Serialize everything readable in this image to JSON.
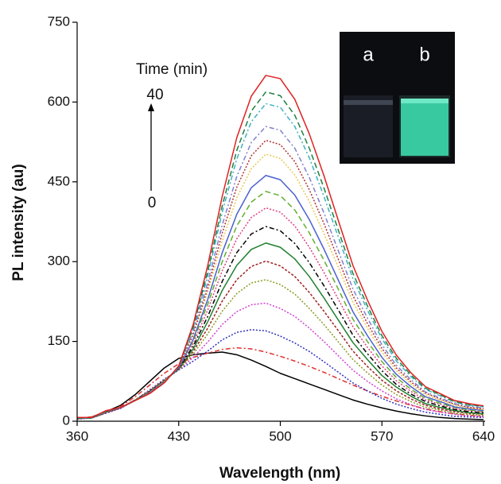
{
  "chart_data": {
    "type": "line",
    "xlabel": "Wavelength (nm)",
    "ylabel": "PL intensity (au)",
    "xlim": [
      360,
      640
    ],
    "ylim": [
      0,
      750
    ],
    "xticks": [
      360,
      430,
      500,
      570,
      640
    ],
    "yticks": [
      0,
      150,
      300,
      450,
      600,
      750
    ],
    "annotations": {
      "time_label": "Time (min)",
      "end": "40",
      "start": "0"
    },
    "inset": {
      "labels": [
        "a",
        "b"
      ]
    },
    "x": [
      360,
      370,
      380,
      390,
      400,
      410,
      420,
      430,
      440,
      450,
      460,
      470,
      480,
      490,
      500,
      510,
      520,
      530,
      540,
      550,
      560,
      570,
      580,
      590,
      600,
      610,
      620,
      630,
      640
    ],
    "series": [
      {
        "color": "#000000",
        "dash": "none",
        "values": [
          5,
          8,
          18,
          30,
          50,
          75,
          100,
          118,
          125,
          128,
          130,
          125,
          115,
          103,
          90,
          80,
          70,
          60,
          50,
          40,
          32,
          25,
          19,
          14,
          10,
          7,
          5,
          4,
          3
        ]
      },
      {
        "color": "#e03030",
        "dash": "6,3,2,3",
        "values": [
          5,
          8,
          17,
          28,
          46,
          68,
          90,
          108,
          120,
          128,
          135,
          138,
          136,
          130,
          122,
          113,
          103,
          92,
          80,
          68,
          57,
          47,
          38,
          30,
          23,
          18,
          14,
          11,
          9
        ]
      },
      {
        "color": "#3030c0",
        "dash": "2,2",
        "values": [
          4,
          6,
          15,
          24,
          40,
          59,
          79,
          96,
          113,
          132,
          153,
          167,
          172,
          170,
          160,
          147,
          131,
          112,
          92,
          72,
          57,
          43,
          32,
          24,
          17,
          13,
          9,
          8,
          7
        ]
      },
      {
        "color": "#d040d0",
        "dash": "2,2",
        "values": [
          5,
          6,
          16,
          24,
          40,
          58,
          78,
          96,
          120,
          149,
          182,
          206,
          219,
          222,
          212,
          197,
          175,
          150,
          123,
          96,
          75,
          57,
          42,
          31,
          22,
          17,
          13,
          10,
          9
        ]
      },
      {
        "color": "#8a9a20",
        "dash": "2,2",
        "values": [
          5,
          6,
          16,
          25,
          40,
          57,
          77,
          97,
          126,
          164,
          207,
          240,
          260,
          266,
          257,
          239,
          212,
          182,
          149,
          116,
          91,
          68,
          50,
          37,
          26,
          21,
          15,
          13,
          11
        ]
      },
      {
        "color": "#a02020",
        "dash": "3,2",
        "values": [
          5,
          6,
          16,
          25,
          40,
          57,
          77,
          98,
          131,
          175,
          226,
          266,
          291,
          301,
          292,
          272,
          242,
          207,
          170,
          132,
          103,
          77,
          57,
          42,
          30,
          23,
          18,
          15,
          13
        ]
      },
      {
        "color": "#208030",
        "dash": "none",
        "values": [
          5,
          6,
          17,
          25,
          39,
          56,
          76,
          98,
          136,
          187,
          246,
          293,
          323,
          335,
          327,
          305,
          272,
          232,
          190,
          148,
          116,
          86,
          64,
          47,
          33,
          26,
          20,
          16,
          14
        ]
      },
      {
        "color": "#000000",
        "dash": "6,3,2,3",
        "values": [
          5,
          6,
          17,
          25,
          40,
          56,
          76,
          99,
          141,
          197,
          263,
          317,
          352,
          366,
          358,
          334,
          298,
          255,
          209,
          162,
          127,
          95,
          69,
          51,
          37,
          29,
          22,
          18,
          16
        ]
      },
      {
        "color": "#e04080",
        "dash": "2,2",
        "values": [
          5,
          6,
          17,
          25,
          39,
          55,
          75,
          100,
          146,
          209,
          283,
          343,
          383,
          401,
          393,
          367,
          327,
          280,
          229,
          178,
          139,
          104,
          76,
          56,
          40,
          32,
          24,
          20,
          17
        ]
      },
      {
        "color": "#60b030",
        "dash": "7,4",
        "values": [
          6,
          7,
          18,
          25,
          40,
          55,
          75,
          101,
          151,
          220,
          300,
          367,
          412,
          432,
          424,
          397,
          354,
          303,
          248,
          192,
          150,
          112,
          82,
          60,
          43,
          34,
          26,
          21,
          19
        ]
      },
      {
        "color": "#4a60d0",
        "dash": "none",
        "values": [
          6,
          6,
          18,
          25,
          39,
          54,
          74,
          100,
          154,
          229,
          317,
          389,
          439,
          462,
          454,
          425,
          379,
          324,
          265,
          206,
          161,
          120,
          88,
          65,
          46,
          37,
          27,
          23,
          20
        ]
      },
      {
        "color": "#e8c850",
        "dash": "2,2",
        "values": [
          6,
          7,
          18,
          26,
          39,
          54,
          74,
          102,
          161,
          243,
          339,
          420,
          475,
          502,
          494,
          463,
          413,
          353,
          289,
          224,
          175,
          130,
          95,
          70,
          50,
          40,
          30,
          25,
          22
        ]
      },
      {
        "color": "#b03030",
        "dash": "2,2",
        "values": [
          6,
          7,
          18,
          26,
          39,
          54,
          73,
          102,
          164,
          251,
          354,
          440,
          499,
          528,
          520,
          488,
          435,
          372,
          304,
          236,
          184,
          137,
          100,
          74,
          53,
          42,
          32,
          26,
          23
        ]
      },
      {
        "color": "#8080d0",
        "dash": "6,3,2,3",
        "values": [
          6,
          7,
          19,
          26,
          39,
          54,
          73,
          103,
          169,
          261,
          369,
          460,
          524,
          554,
          547,
          513,
          458,
          392,
          320,
          249,
          194,
          144,
          105,
          78,
          55,
          44,
          33,
          28,
          25
        ]
      },
      {
        "color": "#40b0c0",
        "dash": "6,3,2,3",
        "values": [
          6,
          6,
          19,
          26,
          39,
          52,
          72,
          103,
          174,
          274,
          393,
          493,
          563,
          597,
          590,
          554,
          495,
          423,
          346,
          268,
          209,
          155,
          113,
          84,
          60,
          48,
          36,
          30,
          27
        ]
      },
      {
        "color": "#208040",
        "dash": "7,4",
        "values": [
          6,
          6,
          19,
          26,
          39,
          52,
          72,
          103,
          177,
          282,
          405,
          509,
          583,
          619,
          612,
          575,
          513,
          439,
          359,
          278,
          217,
          161,
          118,
          87,
          62,
          50,
          37,
          31,
          28
        ]
      },
      {
        "color": "#e02020",
        "dash": "none",
        "values": [
          7,
          7,
          20,
          26,
          39,
          52,
          72,
          104,
          182,
          293,
          423,
          533,
          611,
          650,
          644,
          605,
          540,
          462,
          377,
          293,
          228,
          169,
          124,
          91,
          65,
          52,
          39,
          33,
          29
        ]
      }
    ]
  }
}
